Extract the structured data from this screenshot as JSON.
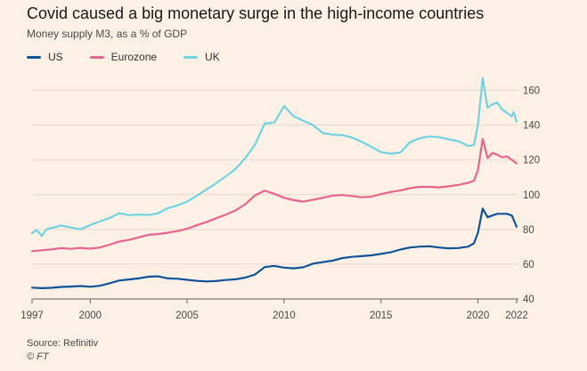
{
  "header": {
    "title": "Covid caused a big monetary surge in the high-income countries",
    "subtitle": "Money supply M3, as a % of GDP"
  },
  "footer": {
    "source": "Source: Refinitiv",
    "copyright": "© FT"
  },
  "colors": {
    "background": "#fdf1e6",
    "gridline": "#e6d9ce",
    "axis": "#66605c",
    "US": "#0f5499",
    "Eurozone": "#e8648f",
    "UK": "#6fd3e2"
  },
  "chart_data": {
    "type": "line",
    "title": "Covid caused a big monetary surge in the high-income countries",
    "subtitle": "Money supply M3, as a % of GDP",
    "xlabel": "",
    "ylabel": "",
    "xlim": [
      1997,
      2022
    ],
    "ylim": [
      40,
      170
    ],
    "x_ticks": [
      1997,
      2000,
      2005,
      2010,
      2015,
      2020,
      2022
    ],
    "y_ticks": [
      40,
      60,
      80,
      100,
      120,
      140,
      160
    ],
    "y_axis_position": "right",
    "grid": true,
    "legend": "top-left",
    "series": [
      {
        "name": "US",
        "points": [
          [
            1997.0,
            46.5
          ],
          [
            1997.5,
            46.2
          ],
          [
            1998.0,
            46.4
          ],
          [
            1998.5,
            46.9
          ],
          [
            1999.0,
            47.1
          ],
          [
            1999.5,
            47.4
          ],
          [
            2000.0,
            47.0
          ],
          [
            2000.5,
            47.6
          ],
          [
            2001.0,
            49.0
          ],
          [
            2001.5,
            50.6
          ],
          [
            2002.0,
            51.2
          ],
          [
            2002.5,
            51.8
          ],
          [
            2003.0,
            52.8
          ],
          [
            2003.5,
            53.0
          ],
          [
            2004.0,
            51.8
          ],
          [
            2004.5,
            51.6
          ],
          [
            2005.0,
            51.0
          ],
          [
            2005.5,
            50.4
          ],
          [
            2006.0,
            50.1
          ],
          [
            2006.5,
            50.3
          ],
          [
            2007.0,
            50.9
          ],
          [
            2007.5,
            51.3
          ],
          [
            2008.0,
            52.3
          ],
          [
            2008.5,
            54.0
          ],
          [
            2009.0,
            58.3
          ],
          [
            2009.5,
            59.0
          ],
          [
            2010.0,
            58.0
          ],
          [
            2010.5,
            57.6
          ],
          [
            2011.0,
            58.2
          ],
          [
            2011.5,
            60.3
          ],
          [
            2012.0,
            61.2
          ],
          [
            2012.5,
            62.0
          ],
          [
            2013.0,
            63.5
          ],
          [
            2013.5,
            64.2
          ],
          [
            2014.0,
            64.6
          ],
          [
            2014.5,
            65.1
          ],
          [
            2015.0,
            65.9
          ],
          [
            2015.5,
            66.8
          ],
          [
            2016.0,
            68.4
          ],
          [
            2016.5,
            69.6
          ],
          [
            2017.0,
            70.1
          ],
          [
            2017.5,
            70.3
          ],
          [
            2018.0,
            69.6
          ],
          [
            2018.5,
            69.1
          ],
          [
            2019.0,
            69.3
          ],
          [
            2019.5,
            70.1
          ],
          [
            2019.8,
            72.0
          ],
          [
            2020.0,
            78.0
          ],
          [
            2020.25,
            92.0
          ],
          [
            2020.5,
            87.0
          ],
          [
            2020.75,
            88.0
          ],
          [
            2021.0,
            89.0
          ],
          [
            2021.5,
            89.0
          ],
          [
            2021.75,
            88.0
          ],
          [
            2022.0,
            81.5
          ]
        ]
      },
      {
        "name": "Eurozone",
        "points": [
          [
            1997.0,
            67.5
          ],
          [
            1997.5,
            68.0
          ],
          [
            1998.0,
            68.5
          ],
          [
            1998.5,
            69.2
          ],
          [
            1999.0,
            68.8
          ],
          [
            1999.5,
            69.4
          ],
          [
            2000.0,
            68.9
          ],
          [
            2000.5,
            69.6
          ],
          [
            2001.0,
            71.2
          ],
          [
            2001.5,
            73.0
          ],
          [
            2002.0,
            74.0
          ],
          [
            2002.5,
            75.4
          ],
          [
            2003.0,
            76.9
          ],
          [
            2003.5,
            77.3
          ],
          [
            2004.0,
            78.1
          ],
          [
            2004.5,
            79.0
          ],
          [
            2005.0,
            80.4
          ],
          [
            2005.5,
            82.4
          ],
          [
            2006.0,
            84.2
          ],
          [
            2006.5,
            86.4
          ],
          [
            2007.0,
            88.5
          ],
          [
            2007.5,
            91.0
          ],
          [
            2008.0,
            94.5
          ],
          [
            2008.5,
            99.5
          ],
          [
            2009.0,
            102.3
          ],
          [
            2009.5,
            100.5
          ],
          [
            2010.0,
            98.2
          ],
          [
            2010.5,
            96.8
          ],
          [
            2011.0,
            96.0
          ],
          [
            2011.5,
            97.0
          ],
          [
            2012.0,
            98.2
          ],
          [
            2012.5,
            99.4
          ],
          [
            2013.0,
            99.8
          ],
          [
            2013.5,
            99.2
          ],
          [
            2014.0,
            98.5
          ],
          [
            2014.5,
            98.8
          ],
          [
            2015.0,
            100.3
          ],
          [
            2015.5,
            101.5
          ],
          [
            2016.0,
            102.4
          ],
          [
            2016.5,
            103.7
          ],
          [
            2017.0,
            104.5
          ],
          [
            2017.5,
            104.5
          ],
          [
            2018.0,
            104.2
          ],
          [
            2018.5,
            104.8
          ],
          [
            2019.0,
            105.6
          ],
          [
            2019.5,
            106.8
          ],
          [
            2019.8,
            108.0
          ],
          [
            2020.0,
            114.0
          ],
          [
            2020.25,
            132.0
          ],
          [
            2020.5,
            121.0
          ],
          [
            2020.75,
            124.0
          ],
          [
            2021.0,
            123.0
          ],
          [
            2021.25,
            121.5
          ],
          [
            2021.5,
            122.0
          ],
          [
            2021.75,
            120.0
          ],
          [
            2022.0,
            118.0
          ]
        ]
      },
      {
        "name": "UK",
        "points": [
          [
            1997.0,
            77.8
          ],
          [
            1997.25,
            79.6
          ],
          [
            1997.5,
            76.3
          ],
          [
            1997.75,
            80.2
          ],
          [
            1998.0,
            80.8
          ],
          [
            1998.5,
            82.2
          ],
          [
            1999.0,
            81.1
          ],
          [
            1999.5,
            80.1
          ],
          [
            2000.0,
            82.5
          ],
          [
            2000.5,
            84.6
          ],
          [
            2001.0,
            86.5
          ],
          [
            2001.5,
            89.3
          ],
          [
            2002.0,
            88.2
          ],
          [
            2002.5,
            88.5
          ],
          [
            2003.0,
            88.3
          ],
          [
            2003.5,
            89.2
          ],
          [
            2004.0,
            92.2
          ],
          [
            2004.5,
            93.8
          ],
          [
            2005.0,
            96.0
          ],
          [
            2005.5,
            99.3
          ],
          [
            2006.0,
            103.0
          ],
          [
            2006.5,
            106.6
          ],
          [
            2007.0,
            110.5
          ],
          [
            2007.5,
            114.8
          ],
          [
            2008.0,
            121.0
          ],
          [
            2008.5,
            128.6
          ],
          [
            2009.0,
            140.9
          ],
          [
            2009.5,
            141.5
          ],
          [
            2010.0,
            150.9
          ],
          [
            2010.5,
            145.0
          ],
          [
            2011.0,
            142.5
          ],
          [
            2011.5,
            140.0
          ],
          [
            2012.0,
            135.5
          ],
          [
            2012.5,
            134.5
          ],
          [
            2013.0,
            134.3
          ],
          [
            2013.5,
            132.9
          ],
          [
            2014.0,
            130.5
          ],
          [
            2014.5,
            127.5
          ],
          [
            2015.0,
            124.5
          ],
          [
            2015.5,
            123.6
          ],
          [
            2016.0,
            124.2
          ],
          [
            2016.5,
            130.2
          ],
          [
            2017.0,
            132.5
          ],
          [
            2017.5,
            133.5
          ],
          [
            2018.0,
            133.0
          ],
          [
            2018.5,
            131.8
          ],
          [
            2019.0,
            130.7
          ],
          [
            2019.5,
            128.0
          ],
          [
            2019.8,
            128.5
          ],
          [
            2020.0,
            140.0
          ],
          [
            2020.25,
            167.0
          ],
          [
            2020.5,
            150.0
          ],
          [
            2020.75,
            152.0
          ],
          [
            2021.0,
            153.0
          ],
          [
            2021.25,
            149.0
          ],
          [
            2021.5,
            147.0
          ],
          [
            2021.75,
            145.0
          ],
          [
            2021.85,
            147.5
          ],
          [
            2022.0,
            142.0
          ]
        ]
      }
    ]
  }
}
